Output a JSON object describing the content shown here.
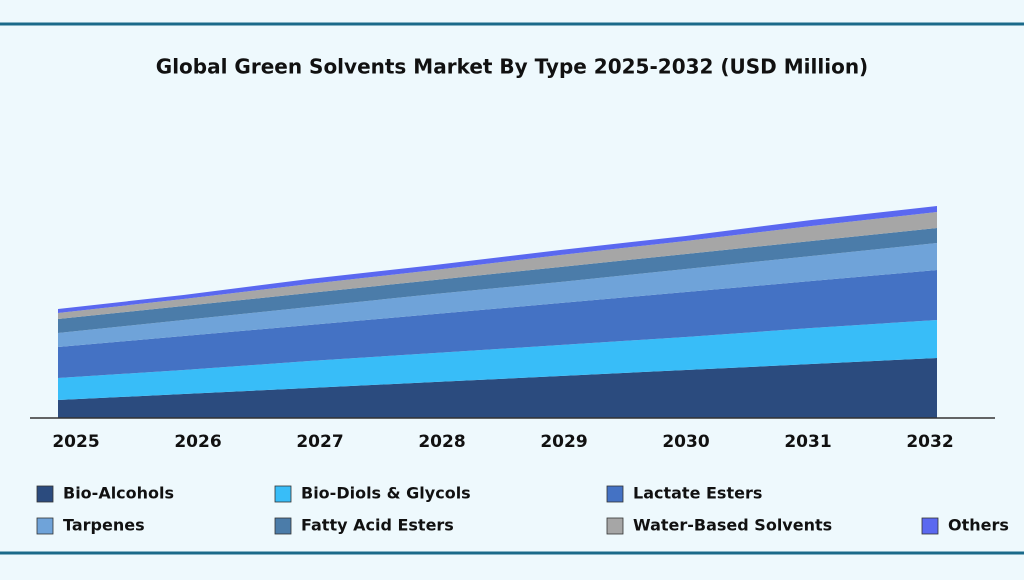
{
  "chart_data": {
    "type": "stacked_area",
    "title": "Global Green Solvents Market By Type 2025-2032 (USD Million)",
    "categories": [
      "2025",
      "2026",
      "2027",
      "2028",
      "2029",
      "2030",
      "2031",
      "2032"
    ],
    "series": [
      {
        "name": "Bio-Alcohols",
        "color": "#2b4b7e",
        "values": [
          18,
          24,
          30,
          36,
          42,
          48,
          54,
          60
        ]
      },
      {
        "name": "Bio-Diols & Glycols",
        "color": "#38bdf8",
        "values": [
          22,
          24,
          27,
          29,
          31,
          33,
          36,
          38
        ]
      },
      {
        "name": "Lactate Esters",
        "color": "#4472c4",
        "values": [
          31,
          34,
          36,
          39,
          42,
          45,
          47,
          50
        ]
      },
      {
        "name": "Tarpenes",
        "color": "#6fa3d9",
        "values": [
          14,
          16,
          18,
          20,
          21,
          23,
          25,
          27
        ]
      },
      {
        "name": "Fatty Acid Esters",
        "color": "#4b7ca9",
        "values": [
          14,
          14,
          14,
          14,
          15,
          15,
          15,
          15
        ]
      },
      {
        "name": "Water-Based Solvents",
        "color": "#a6a6a6",
        "values": [
          6,
          7,
          9,
          10,
          12,
          13,
          15,
          16
        ]
      },
      {
        "name": "Others",
        "color": "#5a68f0",
        "values": [
          4,
          4,
          5,
          5,
          5,
          5,
          6,
          6
        ]
      }
    ]
  }
}
